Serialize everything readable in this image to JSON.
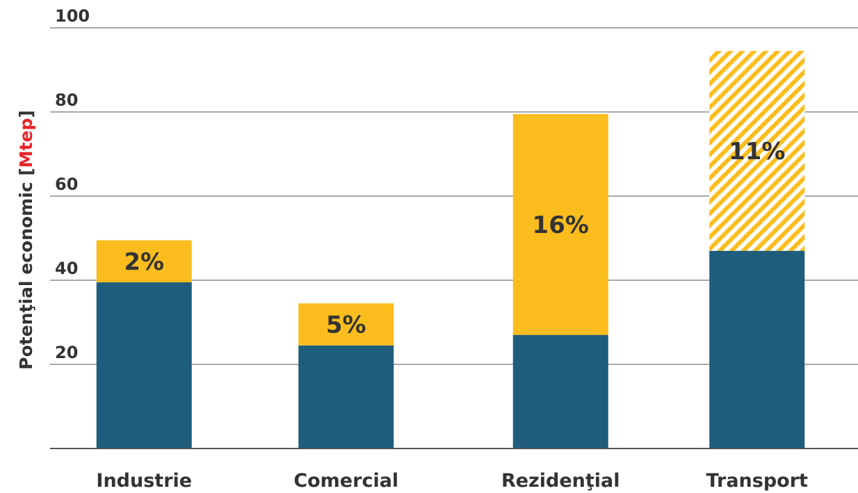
{
  "chart_data": {
    "type": "bar",
    "stacked": true,
    "ylabel": "Potenţial economic [",
    "ylabel_unit": "Mtep",
    "ylabel_close": "]",
    "ylim": [
      0,
      100
    ],
    "yticks": [
      "20",
      "40",
      "60",
      "80",
      "100"
    ],
    "grid": true,
    "categories": [
      "Industrie",
      "Comercial",
      "Rezidenţial",
      "Transport"
    ],
    "series": [
      {
        "values": [
          39.5,
          24.5,
          27,
          47
        ],
        "color": "#1f5d7c"
      },
      {
        "values": [
          10,
          10,
          52.5,
          47.5
        ],
        "color": "#fbbd1d",
        "hatched": [
          false,
          false,
          false,
          true
        ]
      }
    ],
    "labels": [
      "2%",
      "5%",
      "16%",
      "11%"
    ],
    "label_color": "#333333",
    "unit_color": "#e8252b"
  }
}
